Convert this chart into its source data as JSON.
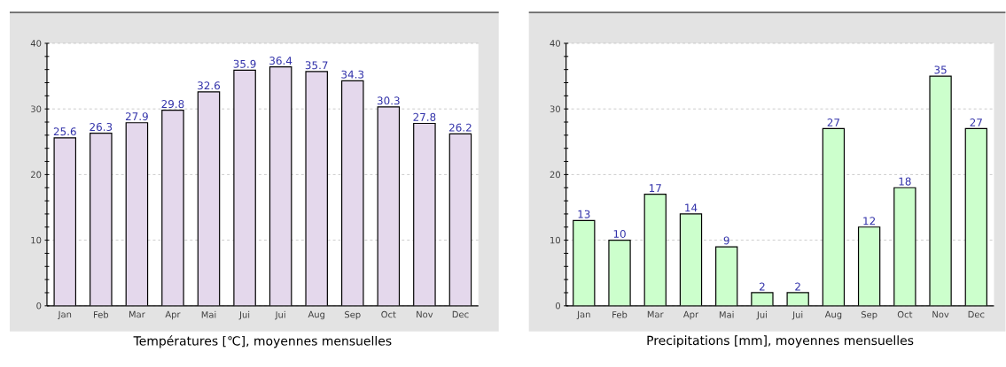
{
  "chart_data": [
    {
      "type": "bar",
      "title": "Températures [℃], moyennes mensuelles",
      "categories": [
        "Jan",
        "Feb",
        "Mar",
        "Apr",
        "Mai",
        "Jui",
        "Jui",
        "Aug",
        "Sep",
        "Oct",
        "Nov",
        "Dec"
      ],
      "values": [
        25.6,
        26.3,
        27.9,
        29.8,
        32.6,
        35.9,
        36.4,
        35.7,
        34.3,
        30.3,
        27.8,
        26.2
      ],
      "color": "#e4d8ec",
      "ylim": [
        0,
        40
      ],
      "yticks": [
        0,
        10,
        20,
        30,
        40
      ],
      "grid": "y",
      "data_labels": true
    },
    {
      "type": "bar",
      "title": "Precipitations [mm], moyennes mensuelles",
      "categories": [
        "Jan",
        "Feb",
        "Mar",
        "Apr",
        "Mai",
        "Jui",
        "Jui",
        "Aug",
        "Sep",
        "Oct",
        "Nov",
        "Dec"
      ],
      "values": [
        13,
        10,
        17,
        14,
        9,
        2,
        2,
        27,
        12,
        18,
        35,
        27
      ],
      "color": "#ccffcc",
      "ylim": [
        0,
        40
      ],
      "yticks": [
        0,
        10,
        20,
        30,
        40
      ],
      "grid": "y",
      "data_labels": true
    }
  ]
}
